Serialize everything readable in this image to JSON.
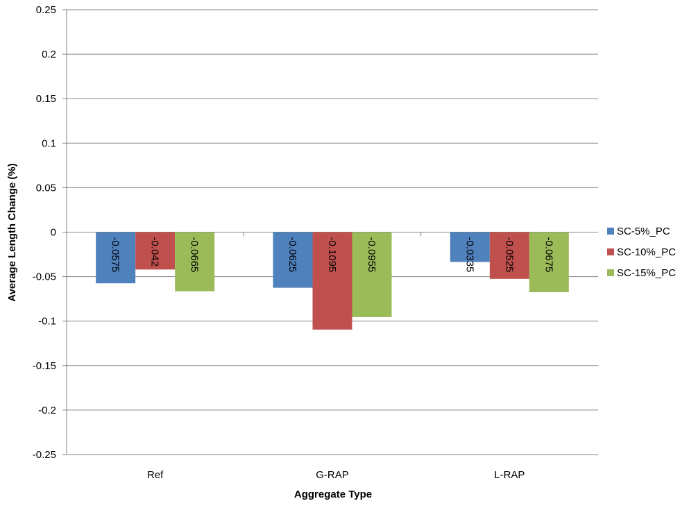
{
  "chart_data": {
    "type": "bar",
    "categories": [
      "Ref",
      "G-RAP",
      "L-RAP"
    ],
    "series": [
      {
        "name": "SC-5%_PC",
        "values": [
          -0.0575,
          -0.0625,
          -0.0335
        ],
        "color": "#4F81BD"
      },
      {
        "name": "SC-10%_PC",
        "values": [
          -0.042,
          -0.1095,
          -0.0525
        ],
        "color": "#C0504D"
      },
      {
        "name": "SC-15%_PC",
        "values": [
          -0.0665,
          -0.0955,
          -0.0675
        ],
        "color": "#9BBB59"
      }
    ],
    "data_labels": [
      [
        "-0.0575",
        "-0.0625",
        "-0.0335"
      ],
      [
        "-0.042",
        "-0.1095",
        "-0.0525"
      ],
      [
        "-0.0665",
        "-0.0955",
        "-0.0675"
      ]
    ],
    "yticks": [
      "0.25",
      "0.2",
      "0.15",
      "0.1",
      "0.05",
      "0",
      "-0.05",
      "-0.1",
      "-0.15",
      "-0.2",
      "-0.25"
    ],
    "ylim": [
      -0.25,
      0.25
    ],
    "xlabel": "Aggregate Type",
    "ylabel": "Average Length Change (%)",
    "legend_position": "right",
    "grid": true
  }
}
